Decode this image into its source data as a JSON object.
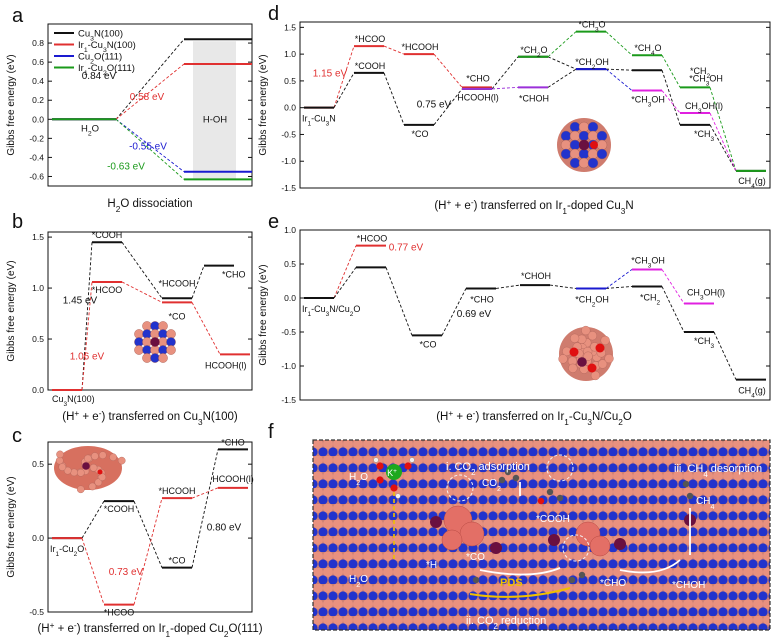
{
  "panel_letters": [
    "a",
    "b",
    "c",
    "d",
    "e",
    "f"
  ],
  "ylabel": "Gibbs free energy (eV)",
  "colors": {
    "black": "#111111",
    "red": "#e03030",
    "blue": "#1a1ad0",
    "green": "#1a9a1a",
    "purple": "#9b30d9",
    "magenta": "#e020e0",
    "atom_cu": "#e8917f",
    "atom_n": "#2233cc",
    "atom_ir": "#6a1040",
    "atom_o": "#e01010"
  },
  "chart_data": [
    {
      "id": "a",
      "type": "line",
      "title": "H₂O dissociation",
      "xlabel": "H₂O dissociation",
      "ylim": [
        -0.7,
        1.0
      ],
      "yticks": [
        "-0.6",
        "-0.4",
        "-0.2",
        "0.0",
        "0.2",
        "0.4",
        "0.6",
        "0.8"
      ],
      "legend": {
        "placement": "top-left",
        "entries": [
          "Cu₃N(100)",
          "Ir₁-Cu₃N(100)",
          "Cu₂O(111)",
          "Ir₁-Cu₂O(111)"
        ]
      },
      "series": [
        {
          "name": "Cu₃N(100)",
          "color": "#111111",
          "values": [
            0.0,
            0.84
          ]
        },
        {
          "name": "Ir₁-Cu₃N(100)",
          "color": "#e03030",
          "values": [
            0.0,
            0.58
          ]
        },
        {
          "name": "Cu₂O(111)",
          "color": "#1a1ad0",
          "values": [
            0.0,
            -0.55
          ]
        },
        {
          "name": "Ir₁-Cu₂O(111)",
          "color": "#1a9a1a",
          "values": [
            0.0,
            -0.63
          ]
        }
      ],
      "state_labels": [
        "H₂O",
        "H-OH"
      ],
      "annotations": [
        {
          "text": "0.84 eV",
          "color": "#111111"
        },
        {
          "text": "0.58 eV",
          "color": "#e03030"
        },
        {
          "text": "-0.55 eV",
          "color": "#1a1ad0"
        },
        {
          "text": "-0.63 eV",
          "color": "#1a9a1a"
        }
      ]
    },
    {
      "id": "b",
      "type": "line",
      "xlabel": "(H⁺ + e⁻) transferred on Cu₃N(100)",
      "ylim": [
        0,
        1.55
      ],
      "yticks": [
        "0.0",
        "0.5",
        "1.0",
        "1.5"
      ],
      "series": [
        {
          "name": "",
          "color": "#111111",
          "labels": [
            "Cu₃N(100)",
            "*COOH",
            "*HCOOH",
            "*CHO"
          ],
          "values": [
            0.0,
            1.45,
            0.9,
            1.22
          ]
        },
        {
          "name": "",
          "color": "#e03030",
          "labels": [
            "Cu₃N(100)",
            "*HCOO",
            "*CO",
            "HCOOH(l)"
          ],
          "values": [
            0.0,
            1.06,
            0.86,
            0.35
          ]
        }
      ],
      "annotations": [
        {
          "text": "1.45 eV",
          "color": "#111111"
        },
        {
          "text": "1.06 eV",
          "color": "#e03030"
        }
      ]
    },
    {
      "id": "c",
      "type": "line",
      "xlabel": "(H⁺ + e⁻) transferred on Ir₁-doped Cu₂O(111)",
      "ylim": [
        -0.5,
        0.65
      ],
      "yticks": [
        "-0.5",
        "0.0",
        "0.5"
      ],
      "series": [
        {
          "name": "",
          "color": "#111111",
          "labels": [
            "Ir₁-Cu₂O",
            "*COOH",
            "*CO",
            "*CHO"
          ],
          "values": [
            0.0,
            0.25,
            -0.2,
            0.6
          ]
        },
        {
          "name": "",
          "color": "#e03030",
          "labels": [
            "Ir₁-Cu₂O",
            "*HCOO",
            "*HCOOH",
            "HCOOH(l)"
          ],
          "values": [
            0.0,
            -0.45,
            0.27,
            0.34
          ]
        }
      ],
      "annotations": [
        {
          "text": "0.73 eV",
          "color": "#e03030"
        },
        {
          "text": "0.80 eV",
          "color": "#111111"
        }
      ]
    },
    {
      "id": "d",
      "type": "line",
      "xlabel": "(H⁺ + e⁻) transferred on Ir₁-doped Cu₃N",
      "ylim": [
        -1.5,
        1.6
      ],
      "yticks": [
        "-1.5",
        "-1.0",
        "-0.5",
        "0.0",
        "0.5",
        "1.0",
        "1.5"
      ],
      "series": [
        {
          "name": "",
          "color": "#e03030",
          "labels": [
            "Ir₁-Cu₃N",
            "*HCOO",
            "*HCOOH",
            "HCOOH(l)"
          ],
          "values": [
            0.0,
            1.15,
            1.0,
            0.38
          ]
        },
        {
          "name": "",
          "color": "#111111",
          "labels": [
            "Ir₁-Cu₃N",
            "*COOH",
            "*CO",
            "*CHO",
            "*CH₂O",
            "*CH₂OH",
            "*CH₂",
            "*CH₃",
            "CH₄(g)"
          ],
          "values": [
            0.0,
            0.65,
            -0.32,
            0.35,
            0.95,
            0.72,
            0.7,
            -0.32,
            -1.18
          ]
        },
        {
          "name": "",
          "color": "#9b30d9",
          "labels": [
            "*CHO",
            "*CHOH"
          ],
          "values": [
            0.35,
            0.38
          ]
        },
        {
          "name": "",
          "color": "#1a9a1a",
          "labels": [
            "*CH₂O",
            "*CH₃O",
            "*CH₄O",
            "*CH₃OH",
            "CH₄(g)"
          ],
          "values": [
            0.95,
            1.42,
            0.98,
            0.38,
            -1.18
          ]
        },
        {
          "name": "",
          "color": "#1a1ad0",
          "labels": [
            "*CH₂OH",
            "*CH₃OH"
          ],
          "values": [
            0.72,
            0.32
          ]
        },
        {
          "name": "",
          "color": "#e020e0",
          "labels": [
            "*CH₃OH",
            "CH₃OH(l)"
          ],
          "values": [
            0.32,
            -0.1
          ]
        }
      ],
      "state_labels": [
        "Ir₁-Cu₃N",
        "*HCOO",
        "*COOH",
        "*HCOOH",
        "*CO",
        "*CHO",
        "HCOOH(l)",
        "*CHOH",
        "*CH₂O",
        "*CH₃O",
        "*CH₂OH",
        "*CH₄O",
        "*CH₃OH",
        "*CH₂",
        "CH₃OH(l)",
        "*CH₃",
        "CH₄(g)"
      ],
      "annotations": [
        {
          "text": "1.15 eV",
          "color": "#e03030"
        },
        {
          "text": "0.75 eV",
          "color": "#111111"
        }
      ]
    },
    {
      "id": "e",
      "type": "line",
      "xlabel": "(H⁺ + e⁻) transferred on Ir₁-Cu₃N/Cu₂O",
      "ylim": [
        -1.5,
        1.0
      ],
      "yticks": [
        "-1.5",
        "-1.0",
        "-0.5",
        "0.0",
        "0.5",
        "1.0"
      ],
      "series": [
        {
          "name": "",
          "color": "#e03030",
          "labels": [
            "Ir₁-Cu₃N/Cu₂O",
            "*HCOO"
          ],
          "values": [
            0.0,
            0.77
          ]
        },
        {
          "name": "",
          "color": "#111111",
          "labels": [
            "Ir₁-Cu₃N/Cu₂O",
            "*COOH",
            "*CO",
            "*CHO",
            "*CHOH",
            "*CH₂OH",
            "*CH₂",
            "*CH₃",
            "CH₄(g)"
          ],
          "values": [
            0.0,
            0.45,
            -0.55,
            0.14,
            0.19,
            0.14,
            0.17,
            -0.5,
            -1.2
          ]
        },
        {
          "name": "",
          "color": "#1a1ad0",
          "labels": [
            "*CH₂OH",
            "*CH₃OH"
          ],
          "values": [
            0.14,
            0.42
          ]
        },
        {
          "name": "",
          "color": "#e020e0",
          "labels": [
            "*CH₃OH",
            "CH₃OH(l)"
          ],
          "values": [
            0.42,
            -0.08
          ]
        }
      ],
      "state_labels": [
        "Ir₁-Cu₃N/Cu₂O",
        "*HCOO",
        "*CO",
        "*CHO",
        "*CHOH",
        "*CH₂OH",
        "*CH₃OH",
        "*CH₂",
        "CH₃OH(l)",
        "*CH₃",
        "CH₄(g)"
      ],
      "annotations": [
        {
          "text": "0.77 eV",
          "color": "#e03030"
        },
        {
          "text": "0.69 eV",
          "color": "#111111"
        }
      ]
    }
  ],
  "panel_f": {
    "labels": {
      "i": "i. CO₂ adsorption",
      "ii": "ii. CO₂ reduction",
      "iii": "iii. CH₄ desorption",
      "h2o_top": "H₂O",
      "k": "K⁺",
      "co2": "CO₂",
      "cooh": "*COOH",
      "co": "*CO",
      "h": "*H",
      "h2o_bottom": "H₂O",
      "pds": "PDS",
      "cho": "*CHO",
      "choh": "*CHOH",
      "ch4": "CH₄"
    }
  }
}
